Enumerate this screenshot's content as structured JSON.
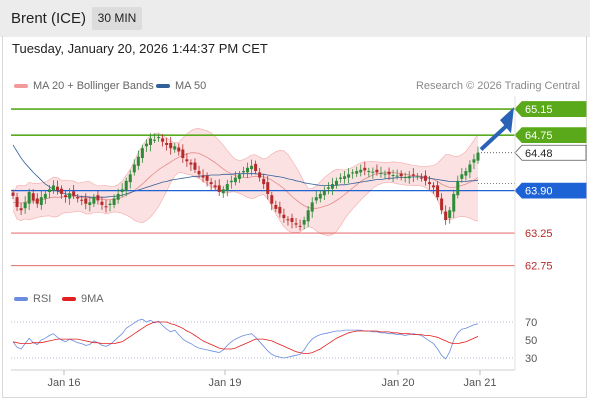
{
  "header": {
    "title": "Brent (ICE)",
    "timeframe": "30 MIN"
  },
  "datetime": "Tuesday, January 20, 2026 1:44:37 PM CET",
  "copyright": "Research © 2026 Trading Central",
  "legend": {
    "bb_label": "MA 20 + Bollinger Bands",
    "ma50_label": "MA 50",
    "rsi_label": "RSI",
    "rsi_ma_label": "9MA"
  },
  "colors": {
    "up": "#2e8b3a",
    "down": "#b52a2a",
    "resistance": "#5aaa1e",
    "support_blue": "#1e63d6",
    "support_red": "#e05252",
    "bb_band": "#f8c9c9",
    "ma50": "#34609a",
    "rsi": "#6a8de0",
    "rsi_ma": "#e32020"
  },
  "chart_data": [
    {
      "type": "candlestick",
      "x_ticks": [
        "Jan 16",
        "Jan 19",
        "Jan 20",
        "Jan 21"
      ],
      "ylim": [
        62.5,
        65.35
      ],
      "levels": [
        {
          "value": 65.15,
          "label": "65.15",
          "kind": "resistance"
        },
        {
          "value": 64.75,
          "label": "64.75",
          "kind": "resistance"
        },
        {
          "value": 64.48,
          "label": "64.48",
          "kind": "last"
        },
        {
          "value": 63.9,
          "label": "63.90",
          "kind": "pivot"
        },
        {
          "value": 63.25,
          "label": "63.25",
          "kind": "support"
        },
        {
          "value": 62.75,
          "label": "62.75",
          "kind": "support"
        }
      ],
      "close": [
        63.82,
        63.65,
        63.6,
        63.72,
        63.88,
        63.75,
        63.7,
        63.8,
        63.85,
        63.92,
        63.98,
        63.9,
        63.85,
        63.8,
        63.86,
        63.82,
        63.78,
        63.75,
        63.7,
        63.72,
        63.8,
        63.75,
        63.68,
        63.65,
        63.7,
        63.78,
        63.85,
        63.92,
        64.05,
        64.15,
        64.3,
        64.42,
        64.55,
        64.62,
        64.7,
        64.68,
        64.72,
        64.65,
        64.6,
        64.55,
        64.58,
        64.5,
        64.4,
        64.35,
        64.3,
        64.22,
        64.15,
        64.1,
        64.05,
        64.0,
        63.95,
        63.88,
        63.92,
        64.0,
        64.05,
        64.1,
        64.15,
        64.2,
        64.25,
        64.28,
        64.2,
        64.1,
        64.0,
        63.85,
        63.7,
        63.62,
        63.55,
        63.48,
        63.45,
        63.42,
        63.38,
        63.35,
        63.45,
        63.6,
        63.72,
        63.8,
        63.85,
        63.9,
        63.95,
        64.0,
        64.05,
        64.1,
        64.12,
        64.15,
        64.18,
        64.2,
        64.22,
        64.21,
        64.2,
        64.19,
        64.18,
        64.17,
        64.16,
        64.15,
        64.14,
        64.13,
        64.12,
        64.11,
        64.12,
        64.13,
        64.12,
        64.1,
        64.05,
        64.0,
        63.95,
        63.8,
        63.6,
        63.45,
        63.6,
        63.85,
        64.05,
        64.15,
        64.2,
        64.3,
        64.38,
        64.48
      ],
      "ma20": [
        63.72,
        63.72,
        63.71,
        63.72,
        63.74,
        63.74,
        63.75,
        63.76,
        63.77,
        63.79,
        63.8,
        63.8,
        63.8,
        63.81,
        63.81,
        63.81,
        63.8,
        63.8,
        63.79,
        63.79,
        63.78,
        63.77,
        63.77,
        63.76,
        63.76,
        63.77,
        63.78,
        63.8,
        63.83,
        63.86,
        63.9,
        63.95,
        64.0,
        64.06,
        64.12,
        64.17,
        64.22,
        64.26,
        64.3,
        64.34,
        64.38,
        64.41,
        64.44,
        64.46,
        64.48,
        64.48,
        64.47,
        64.44,
        64.41,
        64.37,
        64.33,
        64.28,
        64.23,
        64.19,
        64.16,
        64.13,
        64.11,
        64.1,
        64.1,
        64.11,
        64.12,
        64.12,
        64.11,
        64.09,
        64.06,
        64.02,
        63.98,
        63.93,
        63.87,
        63.81,
        63.76,
        63.71,
        63.67,
        63.64,
        63.63,
        63.63,
        63.64,
        63.66,
        63.68,
        63.71,
        63.75,
        63.79,
        63.84,
        63.89,
        63.94,
        63.99,
        64.04,
        64.08,
        64.11,
        64.14,
        64.16,
        64.17,
        64.18,
        64.18,
        64.18,
        64.17,
        64.16,
        64.15,
        64.14,
        64.13,
        64.13,
        64.12,
        64.11,
        64.09,
        64.07,
        64.04,
        64.0,
        63.97,
        63.95,
        63.95,
        63.96,
        63.98,
        64.0,
        64.03,
        64.06,
        64.1
      ],
      "ma50": [
        64.6,
        64.5,
        64.4,
        64.32,
        64.25,
        64.18,
        64.12,
        64.06,
        64.0,
        63.96,
        63.92,
        63.89,
        63.87,
        63.85,
        63.84,
        63.83,
        63.82,
        63.81,
        63.81,
        63.8,
        63.8,
        63.8,
        63.8,
        63.8,
        63.81,
        63.81,
        63.82,
        63.83,
        63.85,
        63.87,
        63.89,
        63.91,
        63.93,
        63.95,
        63.97,
        63.99,
        64.01,
        64.03,
        64.04,
        64.06,
        64.07,
        64.08,
        64.09,
        64.1,
        64.11,
        64.12,
        64.12,
        64.13,
        64.13,
        64.14,
        64.14,
        64.14,
        64.15,
        64.15,
        64.15,
        64.16,
        64.16,
        64.16,
        64.16,
        64.16,
        64.16,
        64.15,
        64.15,
        64.14,
        64.13,
        64.12,
        64.11,
        64.1,
        64.08,
        64.07,
        64.05,
        64.04,
        64.02,
        64.01,
        64.0,
        63.99,
        63.98,
        63.98,
        63.98,
        63.98,
        63.98,
        63.99,
        63.99,
        64.0,
        64.01,
        64.02,
        64.03,
        64.04,
        64.05,
        64.06,
        64.07,
        64.07,
        64.08,
        64.09,
        64.09,
        64.1,
        64.1,
        64.1,
        64.11,
        64.11,
        64.11,
        64.11,
        64.1,
        64.09,
        64.08,
        64.07,
        64.06,
        64.05,
        64.04,
        64.04,
        64.04,
        64.04,
        64.04,
        64.05,
        64.05,
        64.06
      ]
    },
    {
      "type": "line",
      "ylim": [
        20,
        80
      ],
      "y_ticks": [
        "70",
        "50",
        "30"
      ],
      "series": [
        {
          "name": "RSI",
          "values": [
            48,
            42,
            40,
            46,
            52,
            47,
            45,
            50,
            52,
            55,
            57,
            53,
            50,
            48,
            51,
            49,
            47,
            46,
            44,
            45,
            49,
            47,
            44,
            43,
            45,
            49,
            53,
            57,
            63,
            66,
            69,
            72,
            73,
            70,
            72,
            69,
            71,
            66,
            62,
            59,
            61,
            56,
            51,
            48,
            46,
            43,
            41,
            40,
            39,
            38,
            37,
            36,
            39,
            44,
            48,
            51,
            53,
            55,
            56,
            57,
            53,
            48,
            43,
            38,
            34,
            32,
            31,
            30,
            31,
            32,
            33,
            34,
            39,
            46,
            51,
            54,
            56,
            57,
            58,
            59,
            60,
            60,
            61,
            61,
            61,
            61,
            61,
            60,
            60,
            59,
            59,
            58,
            58,
            57,
            57,
            56,
            56,
            55,
            56,
            57,
            56,
            55,
            52,
            49,
            46,
            40,
            33,
            29,
            37,
            50,
            58,
            62,
            63,
            65,
            67,
            68
          ]
        },
        {
          "name": "9MA",
          "values": [
            48,
            47,
            46,
            46,
            46,
            47,
            47,
            47,
            48,
            49,
            50,
            51,
            51,
            51,
            51,
            51,
            51,
            50,
            49,
            48,
            47,
            47,
            46,
            46,
            46,
            46,
            47,
            48,
            51,
            54,
            57,
            60,
            63,
            66,
            68,
            70,
            70,
            70,
            70,
            68,
            67,
            65,
            63,
            60,
            58,
            55,
            52,
            49,
            47,
            45,
            43,
            41,
            40,
            40,
            40,
            41,
            43,
            45,
            47,
            49,
            51,
            51,
            51,
            50,
            49,
            47,
            45,
            43,
            41,
            39,
            37,
            36,
            35,
            35,
            36,
            38,
            40,
            43,
            46,
            49,
            52,
            54,
            56,
            58,
            59,
            60,
            60,
            60,
            60,
            60,
            60,
            59,
            59,
            59,
            58,
            58,
            57,
            57,
            57,
            56,
            56,
            56,
            55,
            55,
            54,
            53,
            51,
            49,
            47,
            46,
            46,
            47,
            48,
            50,
            52,
            54
          ]
        }
      ]
    }
  ]
}
